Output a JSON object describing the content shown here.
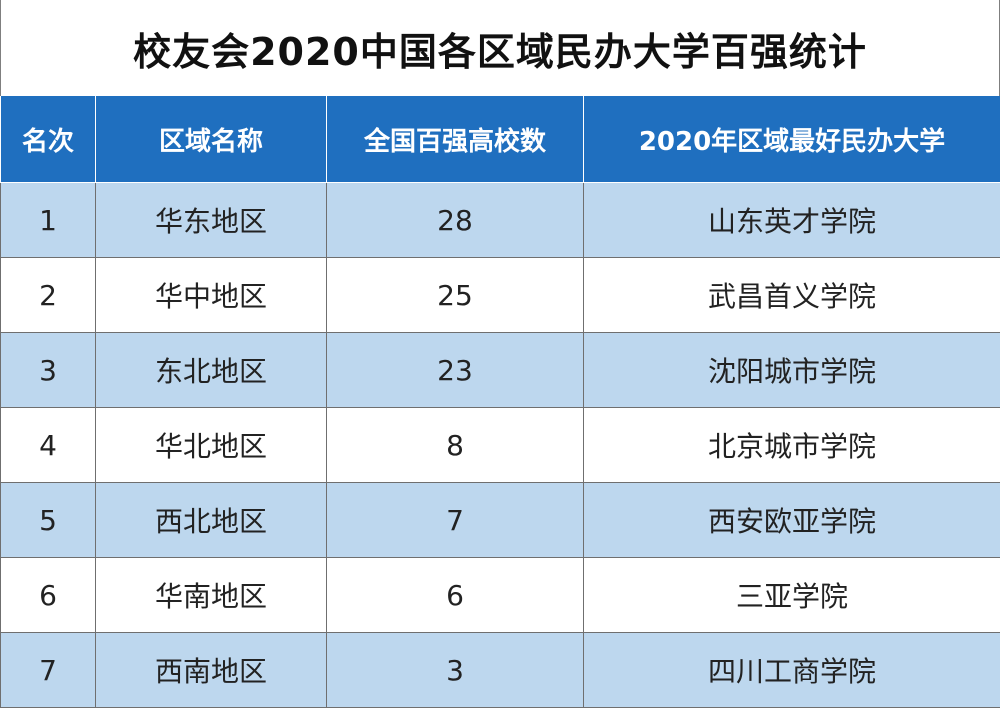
{
  "title": "校友会2020中国各区域民办大学百强统计",
  "colors": {
    "header_bg": "#1f6fbf",
    "header_text": "#ffffff",
    "alt_row_bg": "#bdd7ee",
    "plain_row_bg": "#ffffff"
  },
  "table": {
    "headers": [
      "名次",
      "区域名称",
      "全国百强高校数",
      "2020年区域最好民办大学"
    ],
    "rows": [
      {
        "rank": "1",
        "region": "华东地区",
        "count": "28",
        "best": "山东英才学院"
      },
      {
        "rank": "2",
        "region": "华中地区",
        "count": "25",
        "best": "武昌首义学院"
      },
      {
        "rank": "3",
        "region": "东北地区",
        "count": "23",
        "best": "沈阳城市学院"
      },
      {
        "rank": "4",
        "region": "华北地区",
        "count": "8",
        "best": "北京城市学院"
      },
      {
        "rank": "5",
        "region": "西北地区",
        "count": "7",
        "best": "西安欧亚学院"
      },
      {
        "rank": "6",
        "region": "华南地区",
        "count": "6",
        "best": "三亚学院"
      },
      {
        "rank": "7",
        "region": "西南地区",
        "count": "3",
        "best": "四川工商学院"
      }
    ]
  },
  "chart_data": {
    "type": "table",
    "title": "校友会2020中国各区域民办大学百强统计",
    "columns": [
      "名次",
      "区域名称",
      "全国百强高校数",
      "2020年区域最好民办大学"
    ],
    "rows": [
      [
        "1",
        "华东地区",
        28,
        "山东英才学院"
      ],
      [
        "2",
        "华中地区",
        25,
        "武昌首义学院"
      ],
      [
        "3",
        "东北地区",
        23,
        "沈阳城市学院"
      ],
      [
        "4",
        "华北地区",
        8,
        "北京城市学院"
      ],
      [
        "5",
        "西北地区",
        7,
        "西安欧亚学院"
      ],
      [
        "6",
        "华南地区",
        6,
        "三亚学院"
      ],
      [
        "7",
        "西南地区",
        3,
        "四川工商学院"
      ]
    ]
  }
}
